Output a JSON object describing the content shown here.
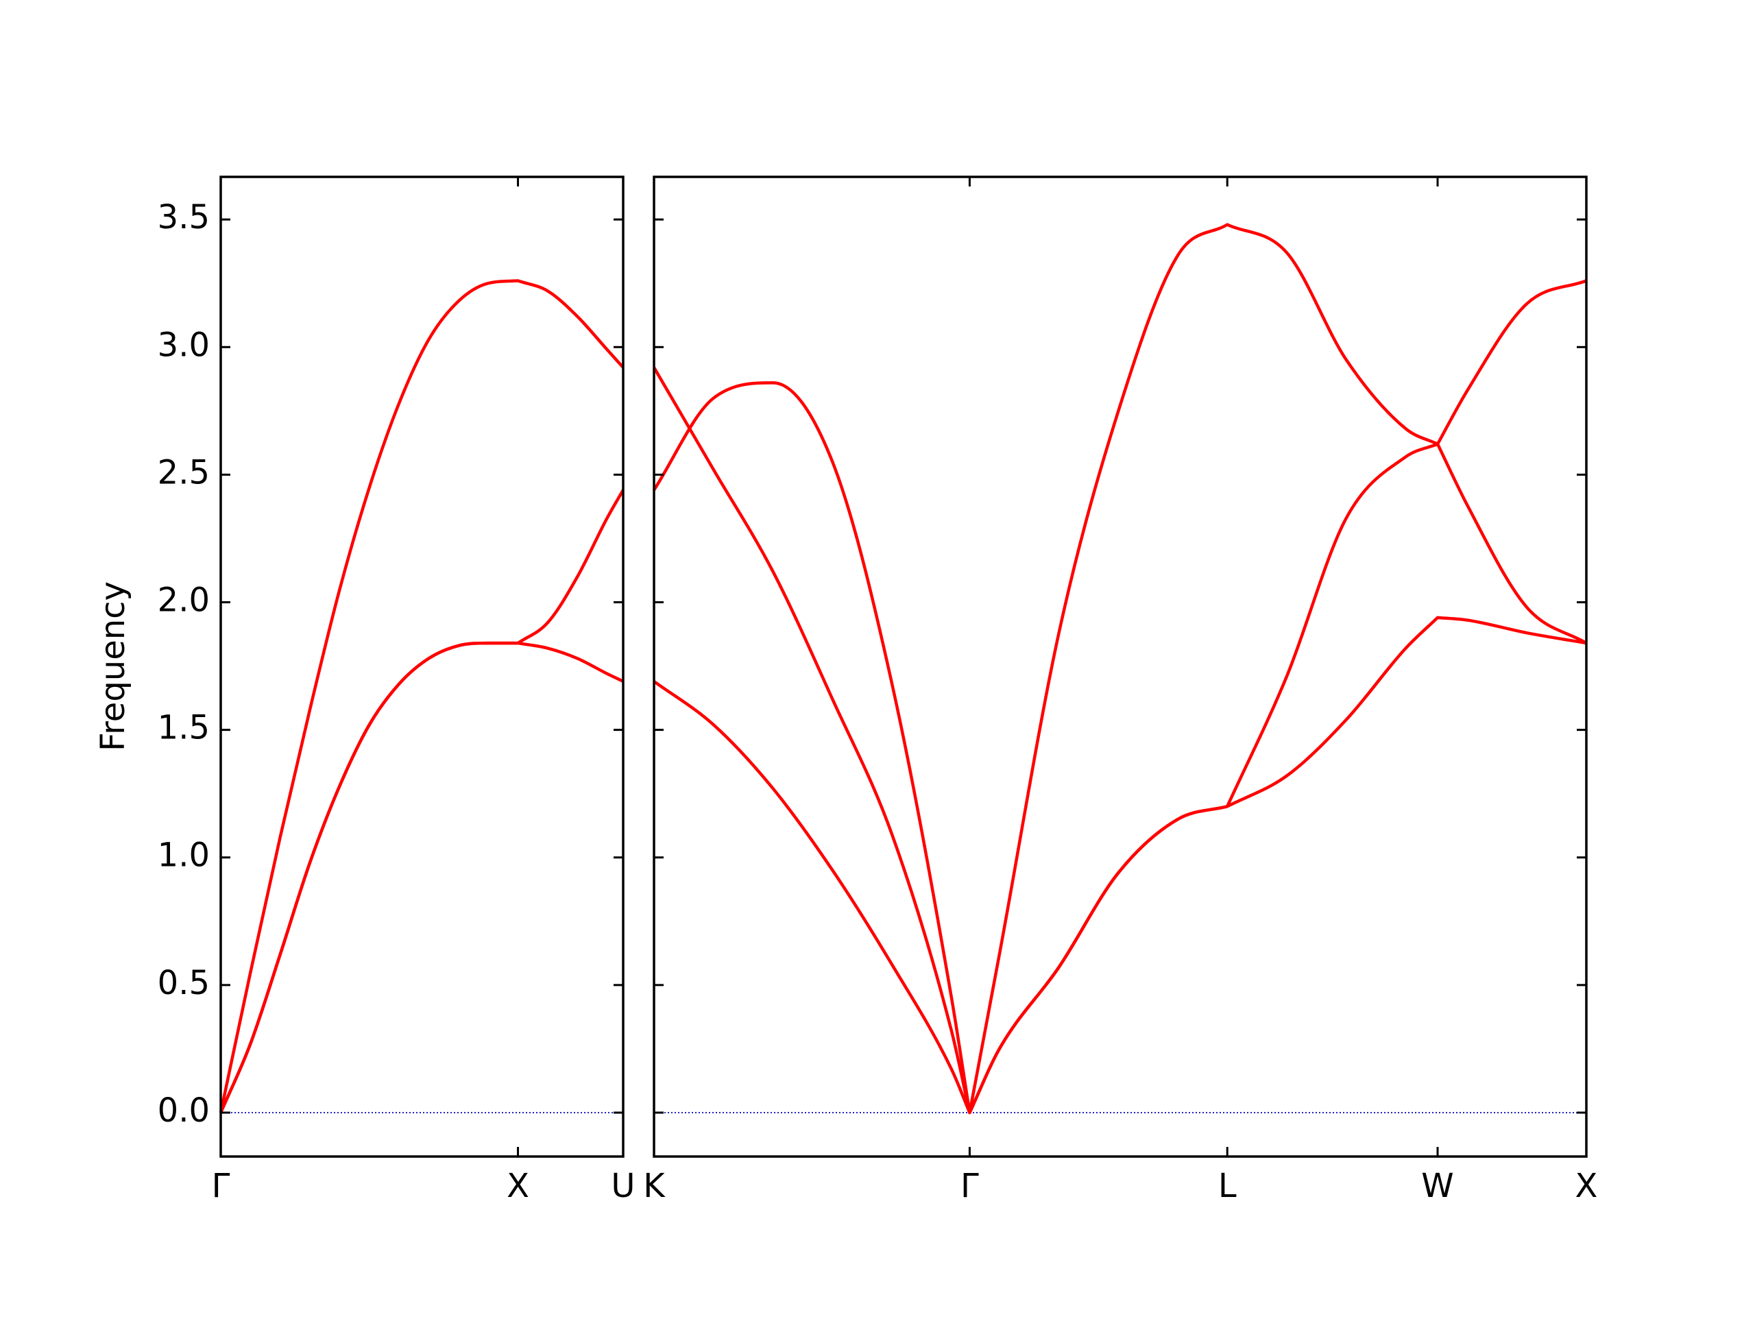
{
  "chart_data": {
    "type": "line",
    "y_label": "Frequency",
    "ylim": [
      -0.172,
      3.667
    ],
    "yticks": [
      {
        "value": 0,
        "label": "0.0"
      },
      0.5,
      {
        "value": 1,
        "label": "1.0"
      },
      1.5,
      {
        "value": 2,
        "label": "2.0"
      },
      2.5,
      {
        "value": 3,
        "label": "3.0"
      },
      3.5
    ],
    "hline": {
      "y": 0,
      "color": "#2020c0",
      "style": "dotted"
    },
    "panels": [
      {
        "xlim": [
          0,
          1.354
        ],
        "xticks": [
          {
            "value": 0,
            "label": "Γ"
          },
          {
            "value": 1,
            "label": "X"
          },
          {
            "value": 1.354,
            "label": "U"
          }
        ],
        "x": [
          0,
          0.1,
          0.2,
          0.3,
          0.4,
          0.5,
          0.6,
          0.7,
          0.8,
          0.9,
          1.0,
          1.1,
          1.2,
          1.3,
          1.354
        ],
        "series": [
          {
            "color": "#ff0000",
            "values": [
              0,
              0.27,
              0.62,
              0.98,
              1.28,
              1.52,
              1.68,
              1.78,
              1.83,
              1.84,
              1.84,
              1.82,
              1.78,
              1.72,
              1.69
            ]
          },
          {
            "color": "#ff0000",
            "values": [
              0,
              0.27,
              0.62,
              0.98,
              1.28,
              1.52,
              1.68,
              1.78,
              1.83,
              1.84,
              1.84,
              1.92,
              2.1,
              2.33,
              2.44
            ]
          },
          {
            "color": "#ff0000",
            "values": [
              0,
              0.55,
              1.08,
              1.58,
              2.05,
              2.45,
              2.78,
              3.03,
              3.18,
              3.25,
              3.26,
              3.22,
              3.12,
              2.99,
              2.92
            ]
          }
        ]
      },
      {
        "xlim": [
          0,
          3.134
        ],
        "xticks": [
          {
            "value": 0,
            "label": "K"
          },
          {
            "value": 1.061,
            "label": "Γ"
          },
          {
            "value": 1.927,
            "label": "L"
          },
          {
            "value": 2.634,
            "label": "W"
          },
          {
            "value": 3.134,
            "label": "X"
          }
        ],
        "x": [
          0,
          0.2,
          0.4,
          0.6,
          0.8,
          1.0,
          1.061,
          1.161,
          1.361,
          1.561,
          1.761,
          1.927,
          2.127,
          2.327,
          2.527,
          2.634,
          2.734,
          2.934,
          3.134
        ],
        "series": [
          {
            "color": "#ff0000",
            "values": [
              1.69,
              1.52,
              1.27,
              0.95,
              0.58,
              0.17,
              0,
              0.25,
              0.57,
              0.94,
              1.15,
              1.2,
              1.32,
              1.54,
              1.82,
              1.94,
              1.93,
              1.88,
              1.84
            ]
          },
          {
            "color": "#ff0000",
            "values": [
              2.92,
              2.52,
              2.12,
              1.62,
              1.09,
              0.32,
              0,
              0.25,
              0.57,
              0.94,
              1.15,
              1.2,
              1.71,
              2.33,
              2.57,
              2.62,
              2.38,
              1.98,
              1.84
            ]
          },
          {
            "color": "#ff0000",
            "values": [
              2.44,
              2.8,
              2.86,
              2.55,
              1.68,
              0.45,
              0,
              0.62,
              1.88,
              2.75,
              3.36,
              3.48,
              3.37,
              2.95,
              2.68,
              2.62,
              2.83,
              3.17,
              3.26
            ]
          }
        ]
      }
    ]
  }
}
